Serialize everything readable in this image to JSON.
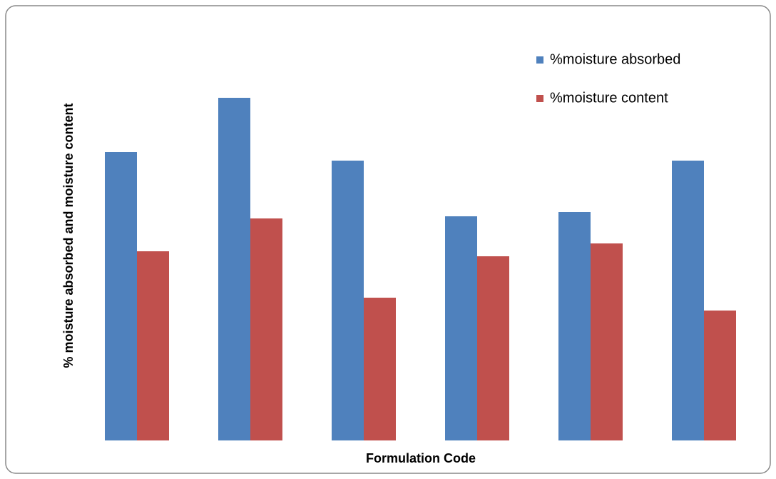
{
  "chart_data": {
    "type": "bar",
    "x_label": "Formulation Code",
    "y_label": "% moisture absorbed and moisture content",
    "categories": [
      null,
      null,
      null,
      null,
      null,
      null
    ],
    "series": [
      {
        "name": "%moisture absorbed",
        "color": "#4f81bd",
        "values": [
          404,
          480,
          392,
          314,
          320,
          392
        ]
      },
      {
        "name": "%moisture content",
        "color": "#c0504d",
        "values": [
          265,
          311,
          200,
          258,
          276,
          182
        ]
      }
    ],
    "ylim": [
      0,
      500
    ],
    "legend": "top-right"
  }
}
